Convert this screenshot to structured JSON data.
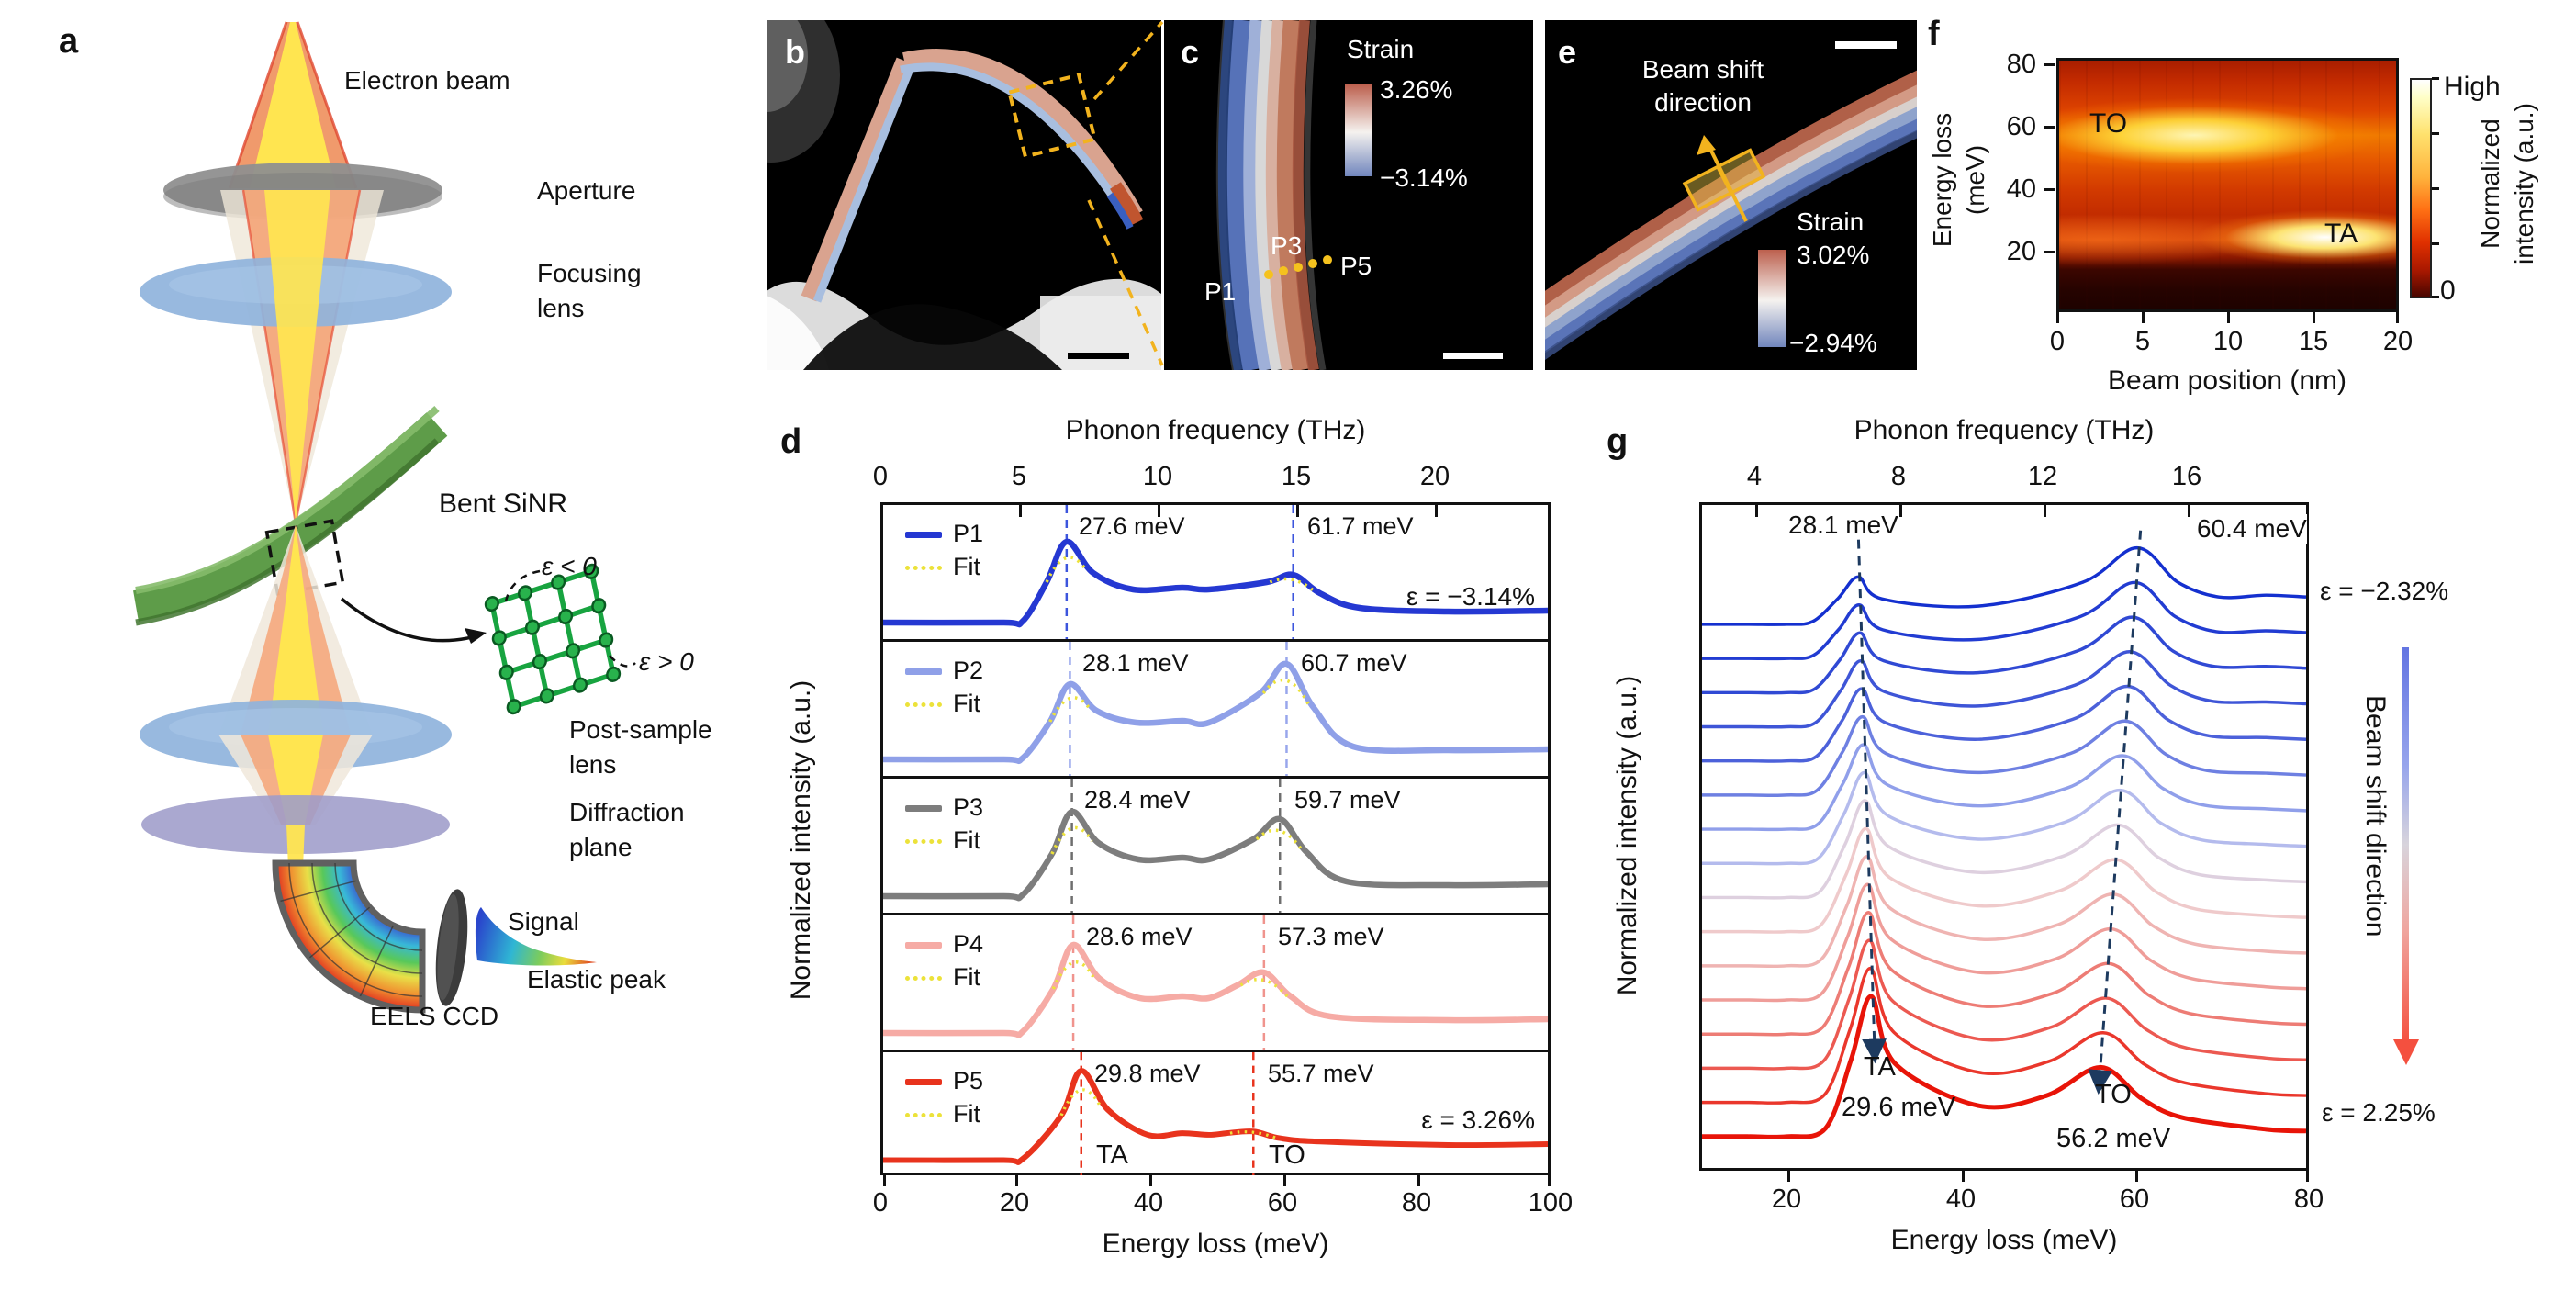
{
  "panels": {
    "a": "a",
    "b": "b",
    "c": "c",
    "d": "d",
    "e": "e",
    "f": "f",
    "g": "g"
  },
  "colors": {
    "accent_yellow": "#f2b31e",
    "strain_pos_red": "#b55a49",
    "strain_neg_blue": "#7186bd",
    "navy_dash": "#1d3a5f",
    "fit_yellow": "#ece23a",
    "d_series": [
      "#2538d2",
      "#8fa0e8",
      "#7d7d7d",
      "#f6aba5",
      "#e8331d"
    ],
    "d_dash": [
      "#3c55dd",
      "#98a6ec",
      "#6e6e6e",
      "#f0948e",
      "#e8331d"
    ],
    "g_gradient_stops": [
      "#1430cf",
      "#4d62da",
      "#aab6f0",
      "#efd8da",
      "#ef9b96",
      "#e81408"
    ]
  },
  "panel_a": {
    "electron_beam": "Electron beam",
    "aperture": "Aperture",
    "focusing_lens_1": "Focusing",
    "focusing_lens_2": "lens",
    "bent_sinr": "Bent SiNR",
    "eps_neg": "ε < 0",
    "eps_pos": "ε > 0",
    "post_sample_1": "Post-sample",
    "post_sample_2": "lens",
    "diffraction_1": "Diffraction",
    "diffraction_2": "plane",
    "signal": "Signal",
    "elastic_peak": "Elastic peak",
    "eels_ccd": "EELS CCD"
  },
  "panel_c": {
    "strain": "Strain",
    "max": "3.26%",
    "min": "−3.14%",
    "p1": "P1",
    "p3": "P3",
    "p5": "P5"
  },
  "panel_e": {
    "beam_shift_1": "Beam shift",
    "beam_shift_2": "direction",
    "strain": "Strain",
    "max": "3.02%",
    "min": "−2.94%"
  },
  "panel_f": {
    "ylabel_1": "Energy loss",
    "ylabel_2": "(meV)",
    "yticks": [
      "80",
      "60",
      "40",
      "20"
    ],
    "xticks": [
      "0",
      "5",
      "10",
      "15",
      "20"
    ],
    "xlabel": "Beam position (nm)",
    "to": "TO",
    "ta": "TA",
    "cbar_high": "High",
    "cbar_low": "0",
    "cbar_label_1": "Normalized",
    "cbar_label_2": "intensity (a.u.)"
  },
  "panel_d": {
    "top_title": "Phonon frequency (THz)",
    "top_ticks": [
      "0",
      "5",
      "10",
      "15",
      "20"
    ],
    "ylabel": "Normalized intensity (a.u.)",
    "xticks": [
      "0",
      "20",
      "40",
      "60",
      "80",
      "100"
    ],
    "xlabel": "Energy loss (meV)",
    "fit": "Fit",
    "eps_top": "ε = −3.14%",
    "eps_bottom": "ε = 3.26%",
    "ta": "TA",
    "to": "TO",
    "series": [
      {
        "name": "P1",
        "ta_label": "27.6 meV",
        "to_label": "61.7 meV"
      },
      {
        "name": "P2",
        "ta_label": "28.1 meV",
        "to_label": "60.7 meV"
      },
      {
        "name": "P3",
        "ta_label": "28.4 meV",
        "to_label": "59.7 meV"
      },
      {
        "name": "P4",
        "ta_label": "28.6 meV",
        "to_label": "57.3 meV"
      },
      {
        "name": "P5",
        "ta_label": "29.8 meV",
        "to_label": "55.7 meV"
      }
    ]
  },
  "panel_g": {
    "top_title": "Phonon frequency (THz)",
    "top_ticks": [
      "4",
      "8",
      "12",
      "16"
    ],
    "ylabel": "Normalized intensity (a.u.)",
    "xticks": [
      "20",
      "40",
      "60",
      "80"
    ],
    "xlabel": "Energy loss (meV)",
    "top_left_value": "28.1 meV",
    "top_right_value": "60.4 meV",
    "eps_top": "ε = −2.32%",
    "eps_bottom": "ε = 2.25%",
    "ta_label": "TA",
    "ta_value": "29.6 meV",
    "to_label": "TO",
    "to_value": "56.2 meV",
    "beam_shift": "Beam shift direction"
  },
  "chart_data": {
    "panel_d": {
      "type": "line",
      "xlabel": "Energy loss (meV)",
      "xlim": [
        0,
        100
      ],
      "top_axis": "Phonon frequency (THz)",
      "top_ticks_thz": [
        0,
        5,
        10,
        15,
        20
      ],
      "ylabel": "Normalized intensity (a.u.)",
      "series": [
        {
          "name": "P1",
          "strain_pct": -3.14,
          "ta_peak_mev": 27.6,
          "to_peak_mev": 61.7
        },
        {
          "name": "P2",
          "ta_peak_mev": 28.1,
          "to_peak_mev": 60.7
        },
        {
          "name": "P3",
          "ta_peak_mev": 28.4,
          "to_peak_mev": 59.7
        },
        {
          "name": "P4",
          "ta_peak_mev": 28.6,
          "to_peak_mev": 57.3
        },
        {
          "name": "P5",
          "strain_pct": 3.26,
          "ta_peak_mev": 29.8,
          "to_peak_mev": 55.7
        }
      ]
    },
    "panel_f": {
      "type": "heatmap",
      "xlabel": "Beam position (nm)",
      "xlim": [
        0,
        20
      ],
      "xticks": [
        0,
        5,
        10,
        15,
        20
      ],
      "ylabel": "Energy loss (meV)",
      "ylim": [
        10,
        80
      ],
      "yticks": [
        20,
        40,
        60,
        80
      ],
      "colorbar": {
        "low": "0",
        "high": "High",
        "label": "Normalized intensity (a.u.)"
      },
      "bands": [
        {
          "name": "TO",
          "center_mev": 55,
          "extent_nm": [
            0,
            20
          ],
          "intensity": "high, brightest at 3-12 nm"
        },
        {
          "name": "TA",
          "center_mev": 28,
          "extent_nm": [
            7,
            20
          ],
          "intensity": "increases with beam position, white hot at 15-19 nm"
        }
      ]
    },
    "panel_g": {
      "type": "line",
      "xlabel": "Energy loss (meV)",
      "xlim": [
        10,
        80
      ],
      "xticks": [
        20,
        40,
        60,
        80
      ],
      "top_axis": "Phonon frequency (THz)",
      "top_ticks_thz": [
        4,
        8,
        12,
        16
      ],
      "ylabel": "Normalized intensity (a.u.)",
      "n_spectra": 16,
      "strain_pct_range": [
        -2.32,
        2.25
      ],
      "ta_peak_mev_range": [
        28.1,
        29.6
      ],
      "to_peak_mev_range": [
        60.4,
        56.2
      ]
    },
    "panel_c_strain_map": {
      "max_pct": 3.26,
      "min_pct": -3.14
    },
    "panel_e_strain_map": {
      "max_pct": 3.02,
      "min_pct": -2.94
    }
  }
}
